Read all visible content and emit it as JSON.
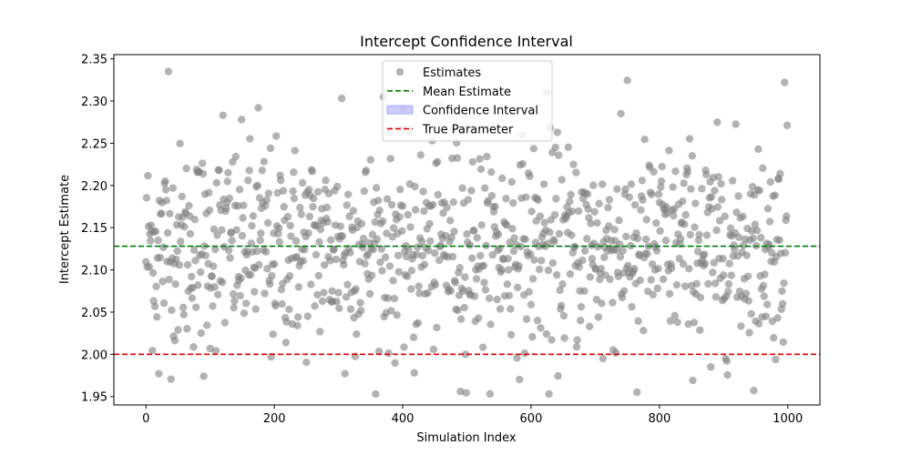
{
  "chart_data": {
    "type": "scatter",
    "title": "Intercept Confidence Interval",
    "xlabel": "Simulation Index",
    "ylabel": "Intercept Estimate",
    "xlim": [
      -50,
      1050
    ],
    "ylim": [
      1.94,
      2.355
    ],
    "xticks": [
      0,
      200,
      400,
      600,
      800,
      1000
    ],
    "yticks": [
      1.95,
      2.0,
      2.05,
      2.1,
      2.15,
      2.2,
      2.25,
      2.3,
      2.35
    ],
    "grid": false,
    "legend_position": "top-center",
    "series": [
      {
        "name": "Estimates",
        "kind": "scatter",
        "color": "#808080",
        "n_points": 1000,
        "x_range": [
          0,
          999
        ],
        "approx_mean": 2.128,
        "approx_std": 0.06,
        "approx_min": 1.953,
        "approx_max": 2.335,
        "notable_points": [
          {
            "x": 35,
            "y": 2.335
          },
          {
            "x": 995,
            "y": 2.322
          },
          {
            "x": 625,
            "y": 2.31
          },
          {
            "x": 305,
            "y": 2.303
          },
          {
            "x": 370,
            "y": 2.305
          },
          {
            "x": 175,
            "y": 2.292
          },
          {
            "x": 740,
            "y": 2.285
          },
          {
            "x": 120,
            "y": 2.283
          },
          {
            "x": 490,
            "y": 1.956
          },
          {
            "x": 628,
            "y": 1.953
          },
          {
            "x": 765,
            "y": 1.955
          },
          {
            "x": 90,
            "y": 1.974
          },
          {
            "x": 20,
            "y": 1.977
          },
          {
            "x": 310,
            "y": 1.977
          },
          {
            "x": 418,
            "y": 1.978
          },
          {
            "x": 880,
            "y": 1.985
          },
          {
            "x": 195,
            "y": 1.997
          },
          {
            "x": 712,
            "y": 1.995
          }
        ]
      },
      {
        "name": "Mean Estimate",
        "kind": "hline",
        "y": 2.128,
        "color": "#008000",
        "style": "dashed"
      },
      {
        "name": "Confidence Interval",
        "kind": "band",
        "y_low": 2.1277,
        "y_high": 2.1283,
        "color": "#8080ff"
      },
      {
        "name": "True Parameter",
        "kind": "hline",
        "y": 2.0,
        "color": "#e00000",
        "style": "dashed"
      }
    ]
  }
}
